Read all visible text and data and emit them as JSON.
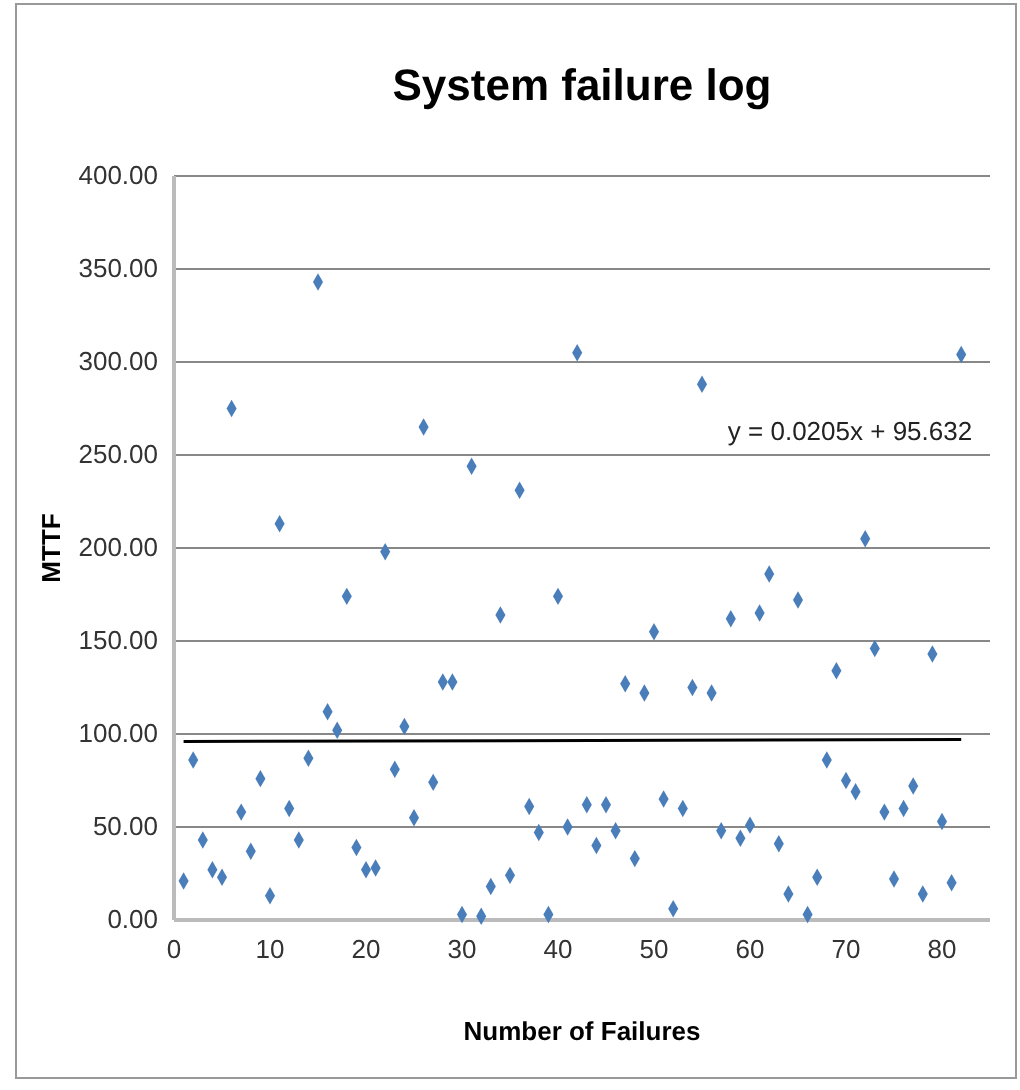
{
  "chart_data": {
    "type": "scatter",
    "title": "System failure log",
    "xlabel": "Number of Failures",
    "ylabel": "MTTF",
    "xlim": [
      0,
      85
    ],
    "xticks": [
      0,
      10,
      20,
      30,
      40,
      50,
      60,
      70,
      80
    ],
    "ylim": [
      0,
      400
    ],
    "yticks": [
      {
        "value": 0,
        "label": "0.00"
      },
      {
        "value": 50,
        "label": "50.00"
      },
      {
        "value": 100,
        "label": "100.00"
      },
      {
        "value": 150,
        "label": "150.00"
      },
      {
        "value": 200,
        "label": "200.00"
      },
      {
        "value": 250,
        "label": "250.00"
      },
      {
        "value": 300,
        "label": "300.00"
      },
      {
        "value": 350,
        "label": "350.00"
      },
      {
        "value": 400,
        "label": "400.00"
      }
    ],
    "grid": "y",
    "annotations": [
      "y = 0.0205x + 95.632"
    ],
    "series": [
      {
        "marker": "diamond",
        "color": "#4a7ebb",
        "x": [
          1,
          2,
          3,
          4,
          5,
          6,
          7,
          8,
          9,
          10,
          11,
          12,
          13,
          14,
          15,
          16,
          17,
          18,
          19,
          20,
          21,
          22,
          23,
          24,
          25,
          26,
          27,
          28,
          29,
          30,
          31,
          32,
          33,
          34,
          35,
          36,
          37,
          38,
          39,
          40,
          41,
          42,
          43,
          44,
          45,
          46,
          47,
          48,
          49,
          50,
          51,
          52,
          53,
          54,
          55,
          56,
          57,
          58,
          59,
          60,
          61,
          62,
          63,
          64,
          65,
          66,
          67,
          68,
          69,
          70,
          71,
          72,
          73,
          74,
          75,
          76,
          77,
          78,
          79,
          80,
          81,
          82
        ],
        "values": [
          21,
          86,
          43,
          27,
          23,
          275,
          58,
          37,
          76,
          13,
          213,
          60,
          43,
          87,
          343,
          112,
          102,
          174,
          39,
          27,
          28,
          198,
          81,
          104,
          55,
          265,
          74,
          128,
          128,
          3,
          244,
          2,
          18,
          164,
          24,
          231,
          61,
          47,
          3,
          174,
          50,
          305,
          62,
          40,
          62,
          48,
          127,
          33,
          122,
          155,
          65,
          6,
          60,
          125,
          288,
          122,
          48,
          162,
          44,
          51,
          165,
          186,
          41,
          14,
          172,
          3,
          23,
          86,
          134,
          75,
          69,
          205,
          146,
          58,
          22,
          60,
          72,
          14,
          143,
          53,
          20,
          304
        ]
      },
      {
        "type": "line",
        "color": "#000000",
        "line_style": "solid",
        "x": [
          1,
          82
        ],
        "values": [
          96,
          97
        ]
      }
    ]
  }
}
